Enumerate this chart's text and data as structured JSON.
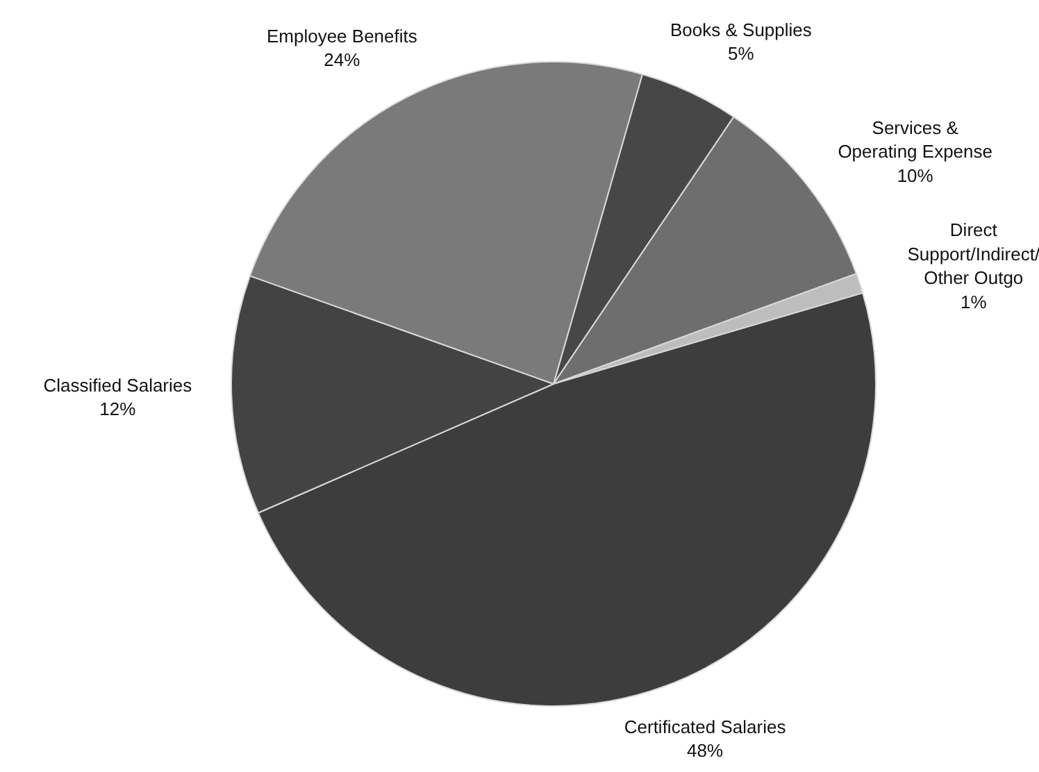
{
  "chart_data": {
    "type": "pie",
    "categories": [
      "Books & Supplies",
      "Services &\nOperating Expense",
      "Direct\nSupport/Indirect/\nOther Outgo",
      "Certificated Salaries",
      "Classified Salaries",
      "Employee Benefits"
    ],
    "values": [
      5,
      10,
      1,
      48,
      12,
      24
    ],
    "colors": [
      "#474747",
      "#6e6e6e",
      "#bdbdbd",
      "#3d3d3d",
      "#434343",
      "#7a7a7a"
    ],
    "value_labels": [
      "5%",
      "10%",
      "1%",
      "48%",
      "12%",
      "24%"
    ]
  }
}
